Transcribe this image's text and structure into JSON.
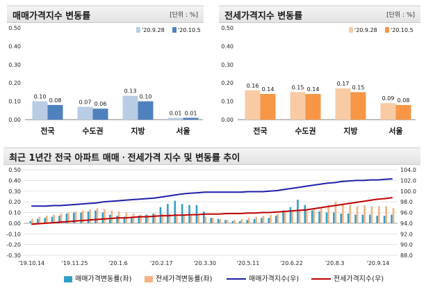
{
  "panels": {
    "sale": {
      "title": "매매가격지수 변동률",
      "unit": "[단위 : %]"
    },
    "jeonse": {
      "title": "전세가격지수 변동률",
      "unit": "[단위 : %]"
    },
    "trend": {
      "title": "최근 1년간 전국 아파트 매매ㆍ전세가격 지수 및 변동률 추이"
    }
  },
  "colors": {
    "sale_prev": "#b8cce4",
    "sale_curr": "#4f81bd",
    "jeonse_prev": "#f8cba5",
    "jeonse_curr": "#f79646",
    "sale_rate": "#31a0c8",
    "jeonse_rate": "#f4b183",
    "sale_index": "#1f1fa8",
    "jeonse_index": "#c00000",
    "grid": "#d9d9d9"
  },
  "chart_data": [
    {
      "type": "bar",
      "title": "매매가격지수 변동률",
      "categories": [
        "전국",
        "수도권",
        "지방",
        "서울"
      ],
      "series": [
        {
          "name": "'20.9.28",
          "values": [
            0.1,
            0.07,
            0.13,
            0.01
          ],
          "labels": [
            "0.10",
            "0.07",
            "0.13",
            "0.01"
          ]
        },
        {
          "name": "'20.10.5",
          "values": [
            0.08,
            0.06,
            0.1,
            0.01
          ],
          "labels": [
            "0.08",
            "0.06",
            "0.10",
            "0.01"
          ]
        }
      ],
      "ylim": [
        0,
        0.5
      ],
      "yticks": [
        "0.00",
        "0.10",
        "0.20",
        "0.30",
        "0.40",
        "0.50"
      ],
      "legend": "top-right",
      "grid": false
    },
    {
      "type": "bar",
      "title": "전세가격지수 변동률",
      "categories": [
        "전국",
        "수도권",
        "지방",
        "서울"
      ],
      "series": [
        {
          "name": "'20.9.28",
          "values": [
            0.16,
            0.15,
            0.17,
            0.09
          ],
          "labels": [
            "0.16",
            "0.15",
            "0.17",
            "0.09"
          ]
        },
        {
          "name": "'20.10.5",
          "values": [
            0.14,
            0.14,
            0.15,
            0.08
          ],
          "labels": [
            "0.14",
            "0.14",
            "0.15",
            "0.08"
          ]
        }
      ],
      "ylim": [
        0,
        0.5
      ],
      "yticks": [
        "0.00",
        "0.10",
        "0.20",
        "0.30",
        "0.40",
        "0.50"
      ],
      "legend": "top-right",
      "grid": false
    },
    {
      "type": "bar+line",
      "title": "최근 1년간 전국 아파트 매매ㆍ전세가격 지수 및 변동률 추이",
      "xticks": [
        "'19.10.14",
        "'19.11.25",
        "'20.1.6",
        "'20.2.17",
        "'20.3.30",
        "'20.5.11",
        "'20.6.22",
        "'20.8.3",
        "'20.9.14"
      ],
      "ylim_left": [
        -0.3,
        0.5
      ],
      "yticks_left": [
        "0.50",
        "0.40",
        "0.30",
        "0.20",
        "0.10",
        "0.00",
        "-0.10",
        "-0.20",
        "-0.30"
      ],
      "ylim_right": [
        88.0,
        104.0
      ],
      "yticks_right": [
        "104.0",
        "102.0",
        "100.0",
        "98.0",
        "96.0",
        "94.0",
        "92.0",
        "90.0",
        "88.0"
      ],
      "series": [
        {
          "name": "매매가격변동률(좌)",
          "kind": "bar",
          "axis": "left",
          "values": [
            0.02,
            0.04,
            0.05,
            0.06,
            0.07,
            0.09,
            0.1,
            0.1,
            0.11,
            0.12,
            0.1,
            0.08,
            0.07,
            0.06,
            0.06,
            0.07,
            0.08,
            0.09,
            0.15,
            0.18,
            0.21,
            0.18,
            0.17,
            0.17,
            0.11,
            0.05,
            0.04,
            0.03,
            0.02,
            0.02,
            0.03,
            0.04,
            0.05,
            0.05,
            0.07,
            0.12,
            0.15,
            0.22,
            0.17,
            0.12,
            0.11,
            0.1,
            0.1,
            0.09,
            0.09,
            0.08,
            0.08,
            0.08,
            0.07,
            0.07,
            0.08
          ]
        },
        {
          "name": "전세가격변동률(좌)",
          "kind": "bar",
          "axis": "left",
          "values": [
            0.04,
            0.06,
            0.07,
            0.08,
            0.09,
            0.1,
            0.11,
            0.12,
            0.13,
            0.14,
            0.13,
            0.12,
            0.11,
            0.1,
            0.09,
            0.08,
            0.08,
            0.09,
            0.09,
            0.09,
            0.08,
            0.08,
            0.08,
            0.07,
            0.06,
            0.05,
            0.04,
            0.03,
            0.03,
            0.04,
            0.05,
            0.06,
            0.07,
            0.08,
            0.09,
            0.1,
            0.11,
            0.12,
            0.13,
            0.14,
            0.15,
            0.17,
            0.2,
            0.18,
            0.17,
            0.16,
            0.17,
            0.16,
            0.16,
            0.16,
            0.14
          ]
        },
        {
          "name": "매매가격지수(우)",
          "kind": "line",
          "axis": "right",
          "values": [
            97.2,
            97.2,
            97.2,
            97.3,
            97.3,
            97.4,
            97.5,
            97.6,
            97.7,
            97.8,
            98.0,
            98.1,
            98.2,
            98.3,
            98.4,
            98.5,
            98.6,
            98.7,
            98.9,
            99.1,
            99.3,
            99.5,
            99.6,
            99.7,
            99.8,
            99.8,
            99.8,
            99.8,
            99.8,
            99.8,
            99.9,
            99.9,
            99.9,
            100.0,
            100.1,
            100.3,
            100.5,
            100.7,
            100.9,
            101.1,
            101.3,
            101.5,
            101.6,
            101.8,
            101.9,
            102.0,
            102.0,
            102.1,
            102.1,
            102.2,
            102.3
          ]
        },
        {
          "name": "전세가격지수(우)",
          "kind": "line",
          "axis": "right",
          "values": [
            93.8,
            93.9,
            94.0,
            94.1,
            94.2,
            94.3,
            94.4,
            94.5,
            94.6,
            94.7,
            94.8,
            94.9,
            95.0,
            95.0,
            95.1,
            95.2,
            95.2,
            95.3,
            95.4,
            95.4,
            95.5,
            95.5,
            95.6,
            95.6,
            95.7,
            95.7,
            95.7,
            95.8,
            95.8,
            95.8,
            95.9,
            95.9,
            96.0,
            96.0,
            96.1,
            96.2,
            96.3,
            96.4,
            96.5,
            96.7,
            96.9,
            97.1,
            97.3,
            97.5,
            97.7,
            97.9,
            98.1,
            98.3,
            98.5,
            98.6,
            98.8
          ]
        }
      ],
      "legend": "bottom",
      "grid": true
    }
  ]
}
